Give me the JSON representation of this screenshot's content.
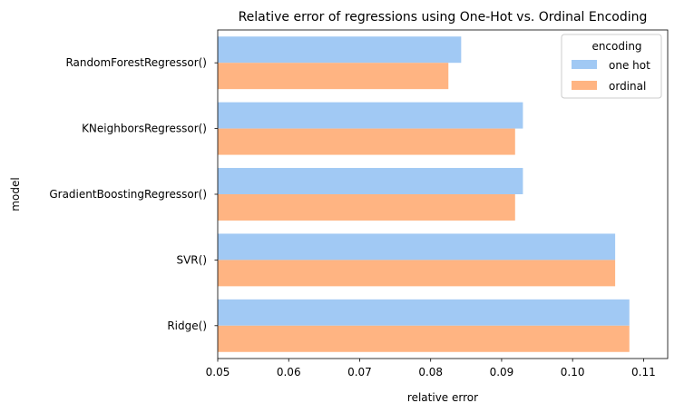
{
  "chart_data": {
    "type": "bar",
    "orientation": "horizontal",
    "title": "Relative error of regressions using One-Hot vs. Ordinal Encoding",
    "xlabel": "relative error",
    "ylabel": "model",
    "categories": [
      "RandomForestRegressor()",
      "KNeighborsRegressor()",
      "GradientBoostingRegressor()",
      "SVR()",
      "Ridge()"
    ],
    "series": [
      {
        "name": "one hot",
        "color": "#a1c9f4",
        "values": [
          0.0843,
          0.093,
          0.093,
          0.106,
          0.108
        ]
      },
      {
        "name": "ordinal",
        "color": "#ffb482",
        "values": [
          0.0825,
          0.0919,
          0.0919,
          0.106,
          0.108
        ]
      }
    ],
    "xlim": [
      0.05,
      0.1134
    ],
    "xticks": [
      "0.05",
      "0.06",
      "0.07",
      "0.08",
      "0.09",
      "0.10",
      "0.11"
    ],
    "legend": {
      "title": "encoding",
      "placement": "top-right"
    },
    "grid": false
  }
}
